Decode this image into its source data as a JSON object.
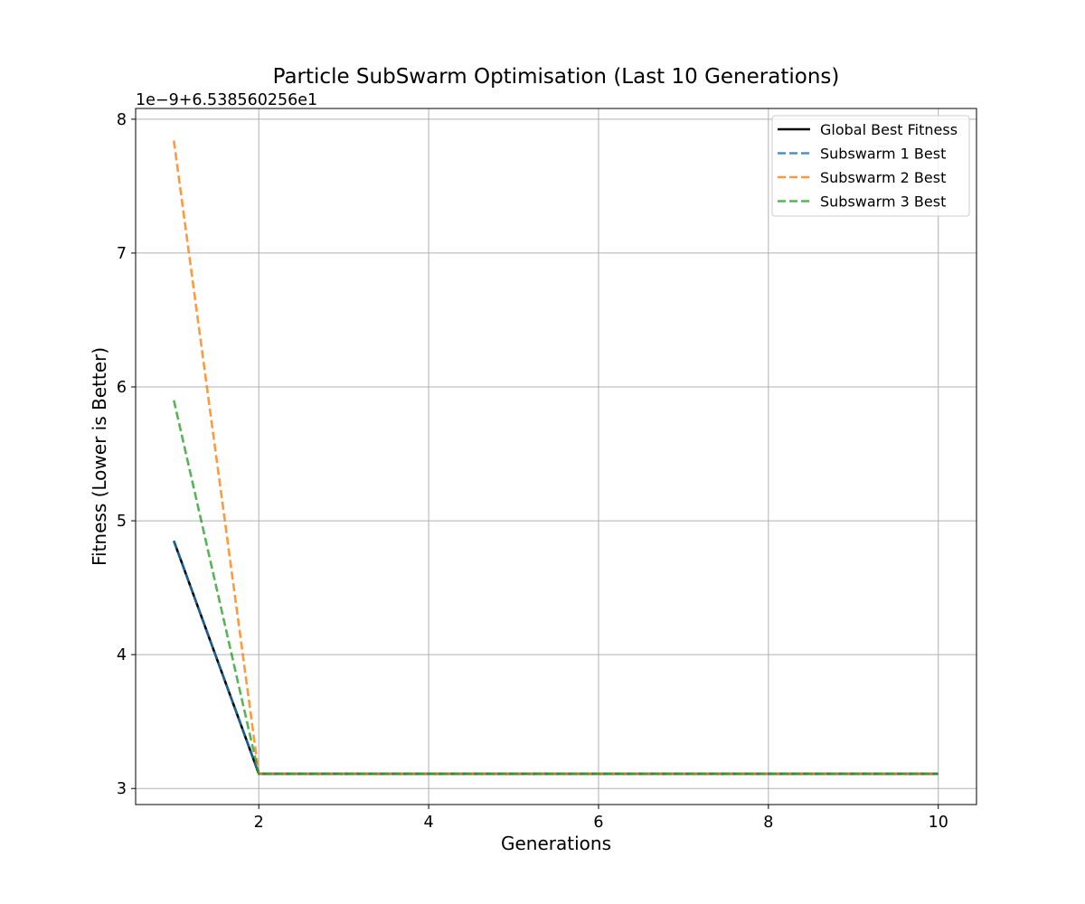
{
  "chart_data": {
    "type": "line",
    "title": "Particle SubSwarm Optimisation (Last 10 Generations)",
    "xlabel": "Generations",
    "ylabel": "Fitness (Lower is Better)",
    "y_offset_text": "1e−9+6.538560256e1",
    "x": [
      1,
      2,
      3,
      4,
      5,
      6,
      7,
      8,
      9,
      10
    ],
    "xlim": [
      0.55,
      10.45
    ],
    "ylim": [
      2.88,
      8.08
    ],
    "xticks": [
      2,
      4,
      6,
      8,
      10
    ],
    "yticks": [
      3,
      4,
      5,
      6,
      7,
      8
    ],
    "grid": true,
    "legend_position": "top-right",
    "series": [
      {
        "name": "Global Best Fitness",
        "color": "#000000",
        "style": "solid",
        "values": [
          4.85,
          3.11,
          3.11,
          3.11,
          3.11,
          3.11,
          3.11,
          3.11,
          3.11,
          3.11
        ]
      },
      {
        "name": "Subswarm 1 Best",
        "color": "#1f77b4",
        "style": "dashed",
        "values": [
          4.85,
          3.11,
          3.11,
          3.11,
          3.11,
          3.11,
          3.11,
          3.11,
          3.11,
          3.11
        ]
      },
      {
        "name": "Subswarm 2 Best",
        "color": "#ff7f0e",
        "style": "dashed",
        "values": [
          7.84,
          3.11,
          3.11,
          3.11,
          3.11,
          3.11,
          3.11,
          3.11,
          3.11,
          3.11
        ]
      },
      {
        "name": "Subswarm 3 Best",
        "color": "#2ca02c",
        "style": "dashed",
        "values": [
          5.9,
          3.11,
          3.11,
          3.11,
          3.11,
          3.11,
          3.11,
          3.11,
          3.11,
          3.11
        ]
      }
    ]
  }
}
